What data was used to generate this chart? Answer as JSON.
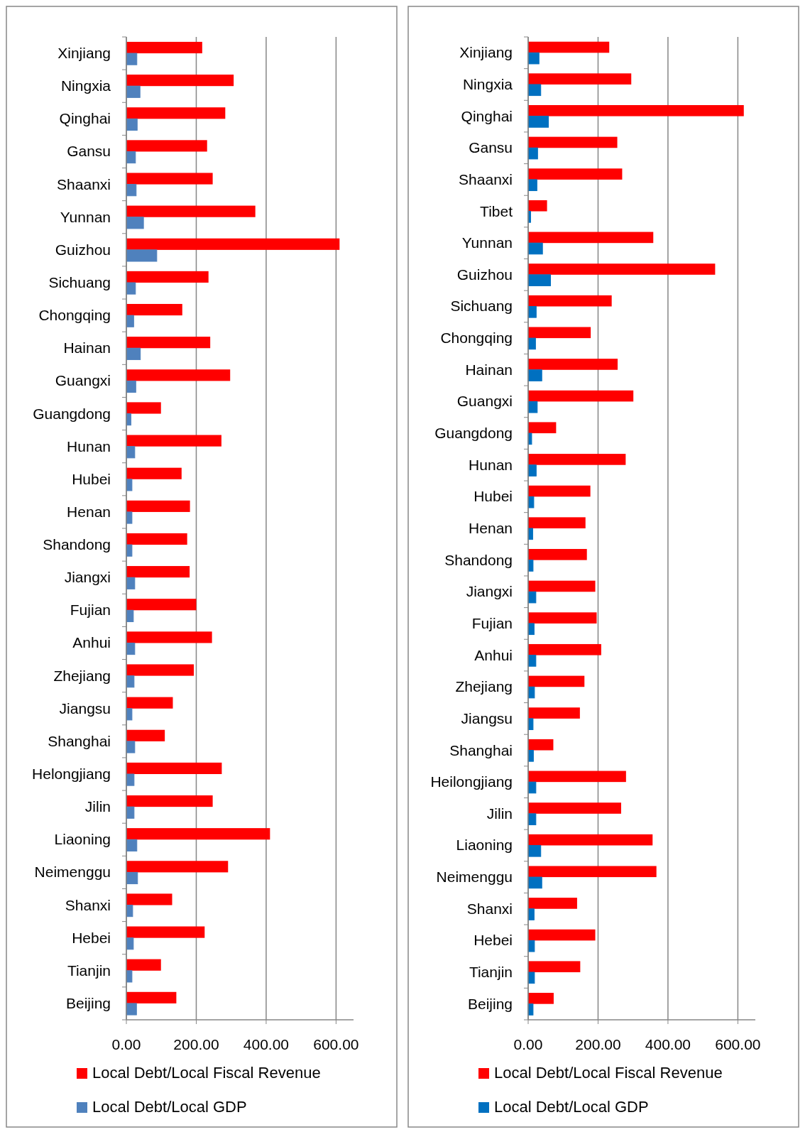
{
  "chart_data": [
    {
      "type": "bar",
      "orientation": "horizontal",
      "categories": [
        "Xinjiang",
        "Ningxia",
        "Qinghai",
        "Gansu",
        "Shaanxi",
        "Yunnan",
        "Guizhou",
        "Sichuang",
        "Chongqing",
        "Hainan",
        "Guangxi",
        "Guangdong",
        "Hunan",
        "Hubei",
        "Henan",
        "Shandong",
        "Jiangxi",
        "Fujian",
        "Anhui",
        "Zhejiang",
        "Jiangsu",
        "Shanghai",
        "Helongjiang",
        "Jilin",
        "Liaoning",
        "Neimenggu",
        "Shanxi",
        "Hebei",
        "Tianjin",
        "Beijing"
      ],
      "series": [
        {
          "name": "Local Debt/Local Fiscal Revenue",
          "color": "#ff0000",
          "values": [
            217,
            307,
            283,
            231,
            247,
            369,
            610,
            235,
            160,
            240,
            297,
            99,
            272,
            158,
            182,
            174,
            181,
            200,
            245,
            193,
            133,
            110,
            273,
            247,
            411,
            291,
            131,
            224,
            99,
            143
          ]
        },
        {
          "name": "Local Debt/Local GDP",
          "color": "#4f81bd",
          "values": [
            30,
            39,
            31,
            26,
            28,
            49,
            87,
            26,
            21,
            40,
            27,
            13,
            24,
            16,
            16,
            16,
            24,
            20,
            24,
            22,
            16,
            24,
            22,
            22,
            30,
            32,
            18,
            20,
            16,
            29
          ]
        }
      ],
      "xlim": [
        0,
        650
      ],
      "xticks": [
        {
          "value": 0,
          "label": "0.00"
        },
        {
          "value": 200,
          "label": "200.00"
        },
        {
          "value": 400,
          "label": "400.00"
        },
        {
          "value": 600,
          "label": "600.00"
        }
      ],
      "grid": "x",
      "legend": "bottom"
    },
    {
      "type": "bar",
      "orientation": "horizontal",
      "categories": [
        "Xinjiang",
        "Ningxia",
        "Qinghai",
        "Gansu",
        "Shaanxi",
        "Tibet",
        "Yunnan",
        "Guizhou",
        "Sichuang",
        "Chongqing",
        "Hainan",
        "Guangxi",
        "Guangdong",
        "Hunan",
        "Hubei",
        "Henan",
        "Shandong",
        "Jiangxi",
        "Fujian",
        "Anhui",
        "Zhejiang",
        "Jiangsu",
        "Shanghai",
        "Heilongjiang",
        "Jilin",
        "Liaoning",
        "Neimenggu",
        "Shanxi",
        "Hebei",
        "Tianjin",
        "Beijing"
      ],
      "series": [
        {
          "name": "Local Debt/Local Fiscal Revenue",
          "color": "#ff0000",
          "values": [
            232,
            295,
            617,
            255,
            269,
            54,
            358,
            535,
            239,
            179,
            256,
            301,
            80,
            279,
            178,
            164,
            168,
            192,
            196,
            209,
            161,
            148,
            72,
            280,
            266,
            356,
            367,
            140,
            192,
            149,
            73
          ]
        },
        {
          "name": "Local Debt/Local GDP",
          "color": "#0070c0",
          "values": [
            31,
            36,
            58,
            27,
            25,
            7,
            41,
            64,
            23,
            21,
            39,
            26,
            10,
            23,
            16,
            13,
            14,
            22,
            17,
            22,
            18,
            14,
            15,
            22,
            22,
            36,
            39,
            17,
            18,
            18,
            14
          ]
        }
      ],
      "xlim": [
        0,
        650
      ],
      "xticks": [
        {
          "value": 0,
          "label": "0.00"
        },
        {
          "value": 200,
          "label": "200.00"
        },
        {
          "value": 400,
          "label": "400.00"
        },
        {
          "value": 600,
          "label": "600.00"
        }
      ],
      "grid": "x",
      "legend": "bottom"
    }
  ]
}
